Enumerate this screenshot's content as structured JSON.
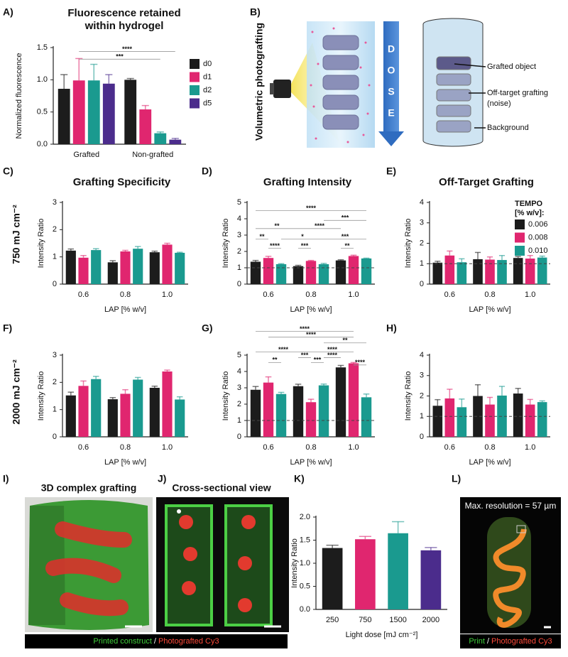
{
  "panel_labels": [
    "A)",
    "B)",
    "C)",
    "D)",
    "E)",
    "F)",
    "G)",
    "H)",
    "I)",
    "J)",
    "K)",
    "L)"
  ],
  "row_labels": [
    "750 mJ cm⁻²",
    "2000 mJ cm⁻²"
  ],
  "schematic": {
    "side_label": "Volumetric photografting",
    "arrow_letters": [
      "D",
      "O",
      "S",
      "E"
    ],
    "callouts": [
      "Grafted object",
      "Off-target grafting",
      "(noise)",
      "Background"
    ]
  },
  "images": [
    {
      "title": "3D complex grafting"
    },
    {
      "title": "Cross-sectional view"
    },
    {
      "overlay": "Max. resolution = 57 µm"
    }
  ],
  "captions": [
    [
      "Printed construct",
      "/",
      "Photografted Cy3"
    ],
    [
      "Print",
      "/",
      "Photografted Cy3"
    ]
  ],
  "chart_data": [
    {
      "type": "bar",
      "title": "Fluorescence retained within hydrogel",
      "ylabel": "Normalized fluorescence",
      "categories": [
        "Grafted",
        "Non-grafted"
      ],
      "series": [
        {
          "name": "d0",
          "color": "#1c1c1c",
          "values": [
            0.86,
            1.0
          ],
          "errors": [
            0.22,
            0.02
          ]
        },
        {
          "name": "d1",
          "color": "#e0266f",
          "values": [
            0.99,
            0.54
          ],
          "errors": [
            0.34,
            0.06
          ]
        },
        {
          "name": "d2",
          "color": "#1a9a8f",
          "values": [
            0.99,
            0.17
          ],
          "errors": [
            0.25,
            0.02
          ]
        },
        {
          "name": "d5",
          "color": "#4b2c8c",
          "values": [
            0.94,
            0.07
          ],
          "errors": [
            0.14,
            0.02
          ]
        }
      ],
      "ylim": [
        0,
        1.5
      ],
      "yticks": [
        {
          "value": 0,
          "label": "0.0"
        },
        0.5,
        {
          "value": 1,
          "label": "1.0"
        },
        1.5
      ],
      "legend": "right",
      "annotations": [
        "****",
        "***"
      ]
    },
    {
      "type": "bar",
      "title": "Grafting Specificity",
      "xlabel": "LAP [% w/v]",
      "ylabel": "Intensity Ratio",
      "categories": [
        "0.6",
        "0.8",
        "1.0"
      ],
      "series": [
        {
          "color": "#1c1c1c",
          "values": [
            1.23,
            0.8,
            1.17
          ],
          "errors": [
            0.06,
            0.06,
            0.04
          ]
        },
        {
          "color": "#e0266f",
          "values": [
            0.97,
            1.2,
            1.45
          ],
          "errors": [
            0.08,
            0.04,
            0.05
          ]
        },
        {
          "color": "#1a9a8f",
          "values": [
            1.25,
            1.3,
            1.15
          ],
          "errors": [
            0.05,
            0.08,
            0.02
          ]
        }
      ],
      "ylim": [
        0,
        3
      ],
      "yticks": [
        0,
        1,
        2,
        3
      ]
    },
    {
      "type": "bar",
      "title": "Grafting Intensity",
      "xlabel": "LAP [% w/v]",
      "ylabel": "Intensity Ratio",
      "categories": [
        "0.6",
        "0.8",
        "1.0"
      ],
      "series": [
        {
          "color": "#1c1c1c",
          "values": [
            1.37,
            1.1,
            1.45
          ],
          "errors": [
            0.08,
            0.05,
            0.04
          ]
        },
        {
          "color": "#e0266f",
          "values": [
            1.6,
            1.42,
            1.72
          ],
          "errors": [
            0.1,
            0.03,
            0.05
          ]
        },
        {
          "color": "#1a9a8f",
          "values": [
            1.22,
            1.22,
            1.57
          ],
          "errors": [
            0.03,
            0.05,
            0.02
          ]
        }
      ],
      "ylim": [
        0,
        5
      ],
      "yticks": [
        0,
        1,
        2,
        3,
        4,
        5
      ],
      "reference_line": 1,
      "annotations": [
        "****",
        "***",
        "**",
        "****",
        "**",
        "*",
        "***",
        "****",
        "***",
        "**"
      ]
    },
    {
      "type": "bar",
      "title": "Off-Target Grafting",
      "xlabel": "LAP [% w/v]",
      "ylabel": "Intensity Ratio",
      "categories": [
        "0.6",
        "0.8",
        "1.0"
      ],
      "series": [
        {
          "name": "0.006",
          "color": "#1c1c1c",
          "values": [
            1.05,
            1.22,
            1.28
          ],
          "errors": [
            0.07,
            0.33,
            0.07
          ]
        },
        {
          "name": "0.008",
          "color": "#e0266f",
          "values": [
            1.4,
            1.2,
            1.25
          ],
          "errors": [
            0.22,
            0.13,
            0.15
          ]
        },
        {
          "name": "0.010",
          "color": "#1a9a8f",
          "values": [
            1.07,
            1.18,
            1.3
          ],
          "errors": [
            0.17,
            0.22,
            0.07
          ]
        }
      ],
      "ylim": [
        0,
        4
      ],
      "yticks": [
        0,
        1,
        2,
        3,
        4
      ],
      "reference_line": 1,
      "legend": "upper right",
      "legend_title": [
        "TEMPO",
        "[% w/v]:"
      ]
    },
    {
      "type": "bar",
      "xlabel": "LAP [% w/v]",
      "ylabel": "Intensity Ratio",
      "categories": [
        "0.6",
        "0.8",
        "1.0"
      ],
      "series": [
        {
          "color": "#1c1c1c",
          "values": [
            1.52,
            1.38,
            1.8
          ],
          "errors": [
            0.12,
            0.06,
            0.06
          ]
        },
        {
          "color": "#e0266f",
          "values": [
            1.87,
            1.58,
            2.4
          ],
          "errors": [
            0.18,
            0.15,
            0.05
          ]
        },
        {
          "color": "#1a9a8f",
          "values": [
            2.12,
            2.1,
            1.37
          ],
          "errors": [
            0.1,
            0.08,
            0.1
          ]
        }
      ],
      "ylim": [
        0,
        3
      ],
      "yticks": [
        0,
        1,
        2,
        3
      ]
    },
    {
      "type": "bar",
      "xlabel": "LAP [% w/v]",
      "ylabel": "Intensity Ratio",
      "categories": [
        "0.6",
        "0.8",
        "1.0"
      ],
      "series": [
        {
          "color": "#1c1c1c",
          "values": [
            2.88,
            3.1,
            4.25
          ],
          "errors": [
            0.2,
            0.12,
            0.12
          ]
        },
        {
          "color": "#e0266f",
          "values": [
            3.32,
            2.12,
            4.5
          ],
          "errors": [
            0.35,
            0.18,
            0.05
          ]
        },
        {
          "color": "#1a9a8f",
          "values": [
            2.62,
            3.15,
            2.42
          ],
          "errors": [
            0.1,
            0.08,
            0.2
          ]
        }
      ],
      "ylim": [
        0,
        5
      ],
      "yticks": [
        0,
        1,
        2,
        3,
        4,
        5
      ],
      "reference_line": 1,
      "annotations": [
        "****",
        "****",
        "**",
        "****",
        "****",
        "***",
        "**",
        "***",
        "****",
        "****"
      ]
    },
    {
      "type": "bar",
      "xlabel": "LAP [% w/v]",
      "ylabel": "Intensity Ratio",
      "categories": [
        "0.6",
        "0.8",
        "1.0"
      ],
      "series": [
        {
          "color": "#1c1c1c",
          "values": [
            1.52,
            2.0,
            2.12
          ],
          "errors": [
            0.3,
            0.55,
            0.25
          ]
        },
        {
          "color": "#e0266f",
          "values": [
            1.88,
            1.58,
            1.58
          ],
          "errors": [
            0.45,
            0.35,
            0.25
          ]
        },
        {
          "color": "#1a9a8f",
          "values": [
            1.45,
            2.02,
            1.7
          ],
          "errors": [
            0.4,
            0.45,
            0.06
          ]
        }
      ],
      "ylim": [
        0,
        4
      ],
      "yticks": [
        0,
        1,
        2,
        3,
        4
      ],
      "reference_line": 1
    },
    {
      "type": "bar",
      "xlabel": "Light dose [mJ cm⁻²]",
      "ylabel": "Intensity Ratio",
      "categories": [
        "250",
        "750",
        "1500",
        "2000"
      ],
      "values": [
        1.33,
        1.52,
        1.65,
        1.28
      ],
      "errors": [
        0.06,
        0.06,
        0.25,
        0.06
      ],
      "colors": [
        "#1c1c1c",
        "#e0266f",
        "#1a9a8f",
        "#4b2c8c"
      ],
      "ylim": [
        0,
        2
      ],
      "yticks": [
        {
          "value": 0,
          "label": "0.0"
        },
        0.5,
        {
          "value": 1,
          "label": "1.0"
        },
        1.5,
        {
          "value": 2,
          "label": "2.0"
        }
      ]
    }
  ]
}
